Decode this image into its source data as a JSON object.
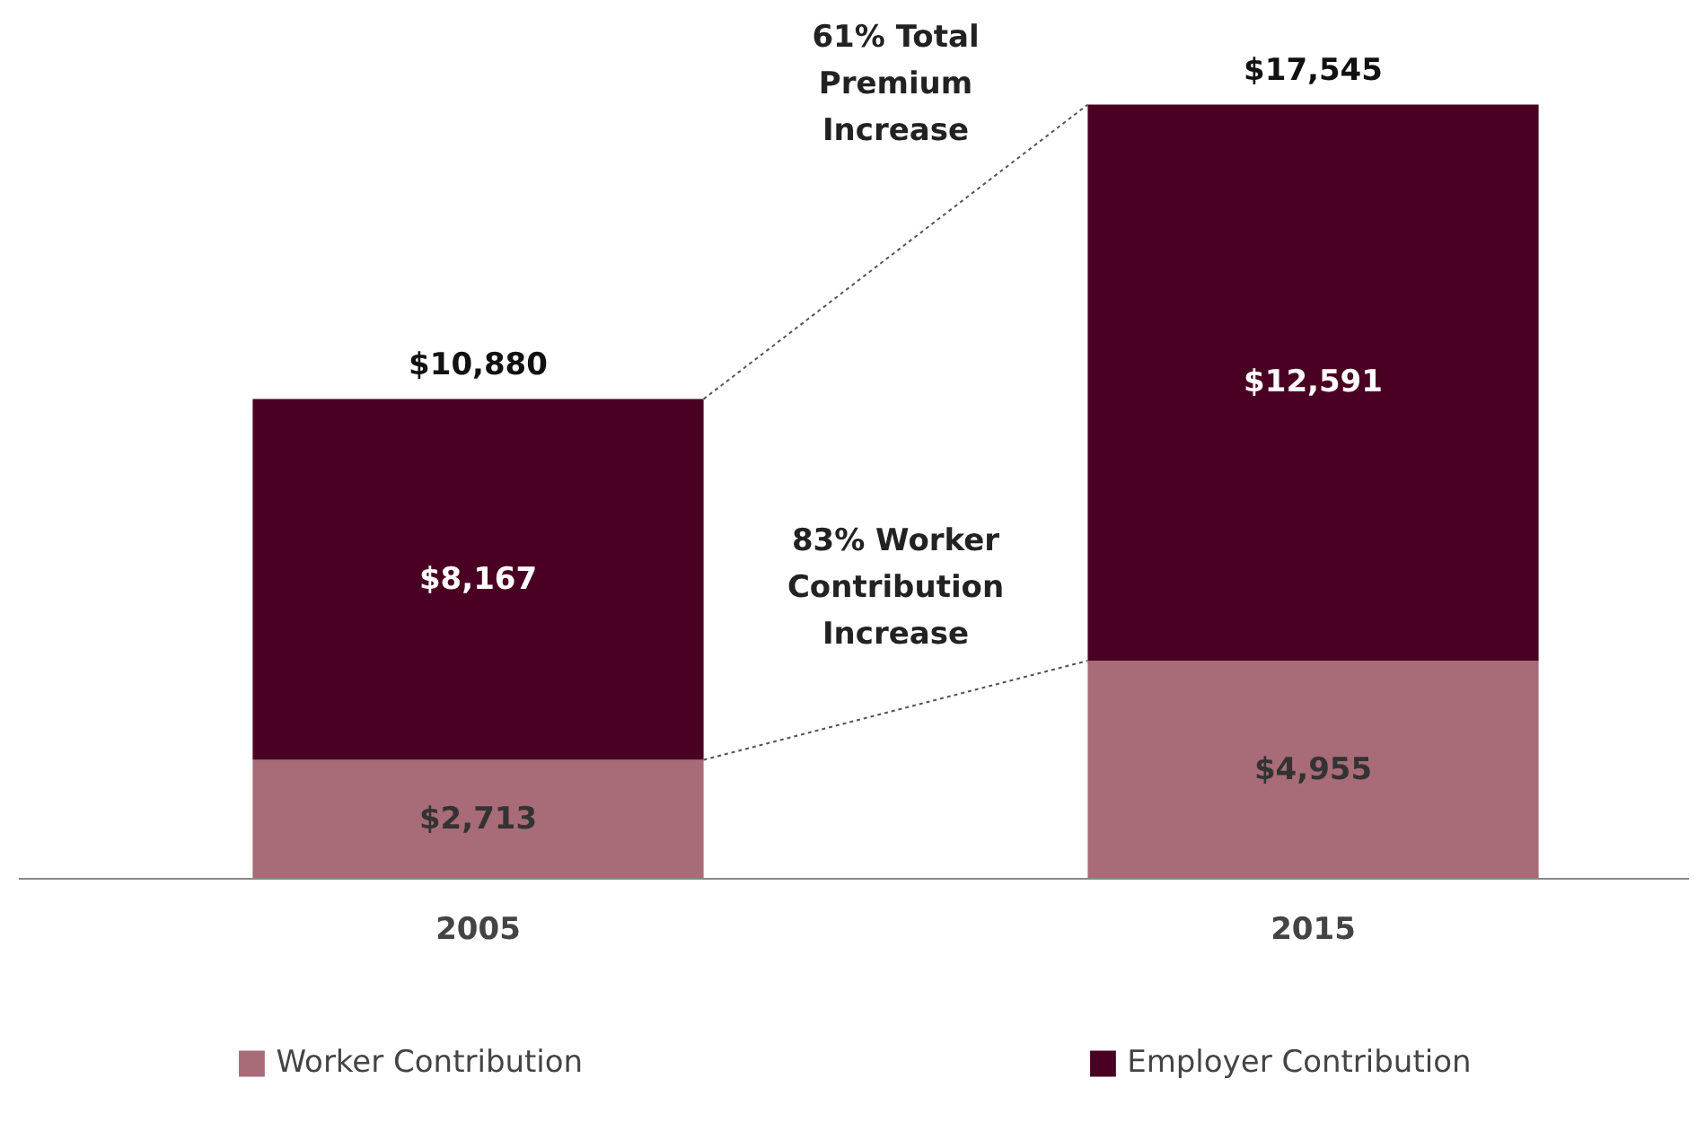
{
  "chart_data": {
    "type": "bar",
    "stacked": true,
    "categories": [
      "2005",
      "2015"
    ],
    "series": [
      {
        "name": "Worker Contribution",
        "color": "#a86b78",
        "values": [
          2713,
          4955
        ],
        "value_labels": [
          "$2,713",
          "$4,955"
        ]
      },
      {
        "name": "Employer Contribution",
        "color": "#4a0022",
        "values": [
          8167,
          12591
        ],
        "value_labels": [
          "$8,167",
          "$12,591"
        ]
      }
    ],
    "totals": [
      "$10,880",
      "$17,545"
    ],
    "annotations": [
      "61% Total Premium Increase",
      "83% Worker Contribution Increase"
    ],
    "legend": "bottom"
  }
}
